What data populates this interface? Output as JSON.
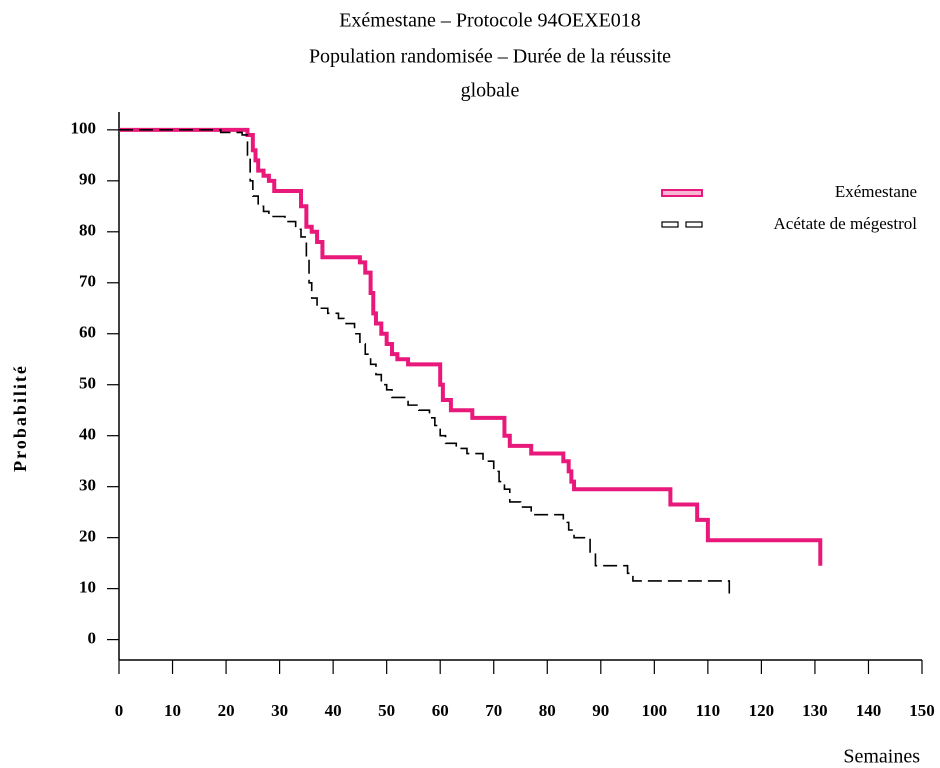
{
  "chart_data": {
    "type": "step",
    "title": [
      "Exémestane – Protocole 94OEXE018",
      "Population randomisée – Durée de la réussite",
      "globale"
    ],
    "xlabel": "Semaines",
    "ylabel": "Probabilité",
    "xlim": [
      0,
      150
    ],
    "ylim": [
      -4,
      103.5
    ],
    "xticks": [
      0,
      10,
      20,
      30,
      40,
      50,
      60,
      70,
      80,
      90,
      100,
      110,
      120,
      130,
      140,
      150
    ],
    "yticks": [
      0,
      10,
      20,
      30,
      40,
      50,
      60,
      70,
      80,
      90,
      100
    ],
    "legend": "upper right",
    "series": [
      {
        "name": "Exémestane",
        "color": "#e8197b",
        "style": "solid",
        "x": [
          0,
          24,
          25,
          25.5,
          26,
          27,
          28,
          29,
          34,
          35,
          36,
          37,
          38,
          45,
          46,
          47,
          47.5,
          48,
          49,
          50,
          51,
          52,
          54,
          60,
          60.5,
          62,
          66,
          72,
          73,
          77,
          83,
          84,
          84.5,
          85,
          103,
          108,
          110,
          131
        ],
        "values": [
          100,
          99,
          96,
          94,
          92,
          91,
          90,
          88,
          85,
          81,
          80,
          78,
          75,
          74,
          72,
          68,
          64,
          62,
          60,
          58,
          56,
          55,
          54,
          50,
          47,
          45,
          43.5,
          40,
          38,
          36.5,
          35,
          33,
          31,
          29.5,
          26.5,
          23.5,
          19.5,
          14.5
        ]
      },
      {
        "name": "Acétate de mégestrol",
        "color": "#000000",
        "style": "dashed",
        "x": [
          0,
          19,
          23,
          24,
          24.5,
          25,
          26,
          27,
          28,
          31,
          33,
          34,
          35,
          35.5,
          36,
          37,
          39,
          41,
          42,
          44,
          45,
          46,
          47,
          48,
          49,
          50,
          51,
          54,
          56,
          58,
          59,
          60,
          61,
          63,
          65,
          68,
          70,
          71,
          72,
          73,
          75,
          77,
          83,
          84,
          85,
          88,
          89,
          95,
          96,
          114
        ],
        "values": [
          100,
          99.5,
          99,
          95,
          90,
          87,
          85,
          84,
          83,
          82,
          80.5,
          79,
          75,
          70,
          67,
          65,
          64,
          63,
          62,
          60,
          58,
          56,
          54,
          52,
          50,
          49,
          47.5,
          46,
          45,
          43.5,
          42,
          40,
          38.5,
          37.5,
          36.5,
          35,
          33,
          31,
          29.5,
          27,
          26,
          24.5,
          23,
          21.5,
          20,
          17,
          14.5,
          13,
          11.5,
          8
        ]
      }
    ]
  }
}
